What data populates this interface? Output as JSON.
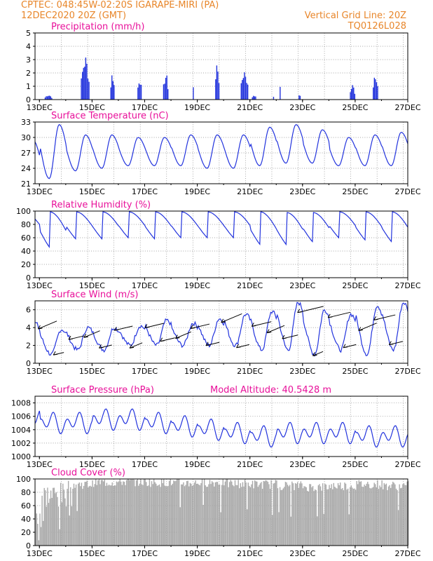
{
  "header": {
    "left_line1": "CPTEC:   048:45W-02:20S   IGARAPE-MIRI (PA)",
    "left_line2": "12DEC2020 20Z (GMT)",
    "right_line1": "Vertical Grid Line: 20Z",
    "right_line2": "TQ0126L028"
  },
  "colors": {
    "header": "#e8862a",
    "title": "#e8109a",
    "series": "#2233dd",
    "cloud": "#aaaaaa",
    "arrow": "#000000"
  },
  "x_axis": {
    "start_day": 12.833,
    "end_day": 27.0,
    "ticks": [
      13,
      15,
      17,
      19,
      21,
      23,
      25,
      27
    ],
    "tick_labels": [
      "13DEC",
      "15DEC",
      "17DEC",
      "19DEC",
      "21DEC",
      "23DEC",
      "25DEC",
      "27DEC"
    ],
    "vertical_grid_days": [
      13.833,
      14.833,
      15.833,
      16.833,
      17.833,
      18.833,
      19.833,
      20.833,
      21.833,
      22.833,
      23.833,
      24.833,
      25.833,
      26.833
    ]
  },
  "chart_data": [
    {
      "id": "precip",
      "type": "bar",
      "title": "Precipitation (mm/h)",
      "ylim": [
        0,
        5
      ],
      "yticks": [
        0,
        1,
        2,
        3,
        4,
        5
      ],
      "events": [
        {
          "day": 13.35,
          "width": 0.3,
          "peak": 0.4
        },
        {
          "day": 14.75,
          "width": 0.35,
          "peak": 3.5
        },
        {
          "day": 15.77,
          "width": 0.15,
          "peak": 2.2
        },
        {
          "day": 16.8,
          "width": 0.15,
          "peak": 1.9
        },
        {
          "day": 17.8,
          "width": 0.2,
          "peak": 2.1
        },
        {
          "day": 18.85,
          "width": 0.04,
          "peak": 1.2
        },
        {
          "day": 19.77,
          "width": 0.18,
          "peak": 3.1
        },
        {
          "day": 20.8,
          "width": 0.3,
          "peak": 2.5
        },
        {
          "day": 21.15,
          "width": 0.15,
          "peak": 0.4
        },
        {
          "day": 21.9,
          "width": 0.04,
          "peak": 0.3
        },
        {
          "day": 22.15,
          "width": 0.04,
          "peak": 1.0
        },
        {
          "day": 22.9,
          "width": 0.1,
          "peak": 0.5
        },
        {
          "day": 24.9,
          "width": 0.2,
          "peak": 1.2
        },
        {
          "day": 25.77,
          "width": 0.2,
          "peak": 2.4
        }
      ]
    },
    {
      "id": "temp",
      "type": "line",
      "title": "Surface Temperature (nC)",
      "ylim": [
        21,
        33
      ],
      "yticks": [
        21,
        24,
        27,
        30,
        33
      ],
      "daily_max": [
        29.5,
        32.5,
        30.5,
        30.5,
        30.0,
        30.0,
        30.5,
        30.5,
        30.5,
        32.0,
        32.5,
        31.5,
        30.0,
        30.5,
        31.0
      ],
      "daily_min": [
        21.0,
        22.0,
        23.5,
        24.0,
        24.5,
        24.5,
        24.5,
        24.0,
        24.0,
        24.5,
        25.0,
        25.0,
        24.5,
        24.5,
        24.5
      ]
    },
    {
      "id": "rh",
      "type": "line",
      "title": "Relative Humidity (%)",
      "ylim": [
        0,
        100
      ],
      "yticks": [
        0,
        20,
        40,
        60,
        80,
        100
      ],
      "daily_max": [
        99,
        99,
        99,
        99,
        99,
        99,
        99,
        99,
        99,
        99,
        98,
        98,
        99,
        99,
        99
      ],
      "daily_min": [
        55,
        35,
        50,
        50,
        52,
        50,
        52,
        52,
        52,
        40,
        40,
        45,
        52,
        48,
        45
      ]
    },
    {
      "id": "wind",
      "type": "line",
      "title": "Surface Wind (m/s)",
      "ylim": [
        0,
        7
      ],
      "yticks": [
        0,
        2,
        4,
        6
      ],
      "daily_max": [
        4.5,
        3.8,
        4.0,
        4.0,
        4.2,
        4.8,
        4.5,
        5.0,
        5.5,
        5.8,
        6.8,
        6.0,
        5.5,
        6.5,
        6.8
      ],
      "daily_min": [
        0.5,
        1.0,
        1.5,
        1.5,
        2.0,
        2.0,
        2.0,
        2.0,
        2.0,
        1.5,
        1.5,
        1.0,
        1.5,
        1.0,
        1.5
      ],
      "arrow_dir_deg": 250
    },
    {
      "id": "pres",
      "type": "line",
      "title": "Surface Pressure (hPa)",
      "subtitle": "Model Altitude: 40.5428 m",
      "ylim": [
        1000,
        1009
      ],
      "yticks": [
        1000,
        1002,
        1004,
        1006,
        1008
      ],
      "daily_mean": [
        1006.5,
        1005.0,
        1005.0,
        1005.5,
        1005.5,
        1005.0,
        1004.5,
        1004.0,
        1003.5,
        1003.0,
        1003.5,
        1003.5,
        1003.5,
        1003.0,
        1003.0
      ],
      "amplitude": 1.8
    },
    {
      "id": "cloud",
      "type": "bar",
      "title": "Cloud Cover (%)",
      "ylim": [
        0,
        100
      ],
      "yticks": [
        0,
        20,
        40,
        60,
        80,
        100
      ],
      "daily_mean": [
        50,
        75,
        92,
        95,
        96,
        95,
        94,
        95,
        93,
        92,
        90,
        88,
        90,
        92,
        90
      ]
    }
  ]
}
